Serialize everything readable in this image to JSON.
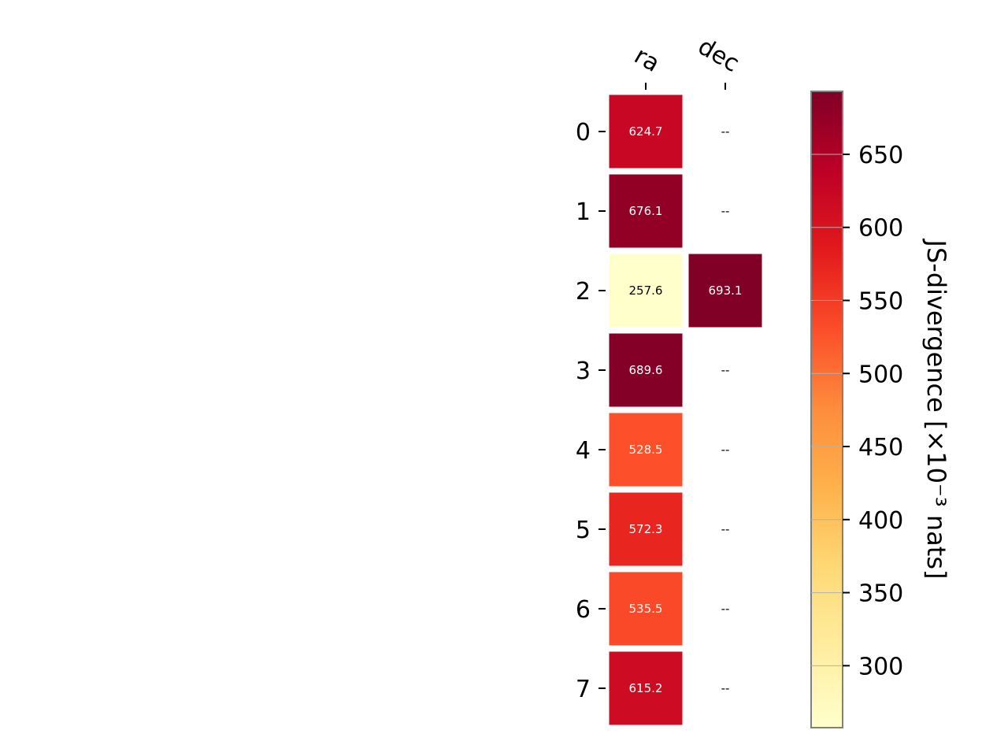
{
  "chart_data": {
    "type": "heatmap",
    "columns": [
      "ra",
      "dec"
    ],
    "rows": [
      "0",
      "1",
      "2",
      "3",
      "4",
      "5",
      "6",
      "7"
    ],
    "values": [
      [
        624.7,
        null
      ],
      [
        676.1,
        null
      ],
      [
        257.6,
        693.1
      ],
      [
        689.6,
        null
      ],
      [
        528.5,
        null
      ],
      [
        572.3,
        null
      ],
      [
        535.5,
        null
      ],
      [
        615.2,
        null
      ]
    ],
    "cell_labels": [
      [
        "624.7",
        "--"
      ],
      [
        "676.1",
        "--"
      ],
      [
        "257.6",
        "693.1"
      ],
      [
        "689.6",
        "--"
      ],
      [
        "528.5",
        "--"
      ],
      [
        "572.3",
        "--"
      ],
      [
        "535.5",
        "--"
      ],
      [
        "615.2",
        "--"
      ]
    ],
    "colorbar": {
      "label": "JS-divergence [×10⁻³ nats]",
      "range": [
        257.6,
        693.1
      ],
      "ticks": [
        300,
        350,
        400,
        450,
        500,
        550,
        600,
        650
      ],
      "tick_labels": [
        "300",
        "350",
        "400",
        "450",
        "500",
        "550",
        "600",
        "650"
      ],
      "colormap": "YlOrRd",
      "color_stops": [
        "#ffffcc",
        "#ffeda0",
        "#fed976",
        "#feb24c",
        "#fd8d3c",
        "#fc4e2a",
        "#e31a1c",
        "#bd0026",
        "#800026"
      ]
    },
    "grid": false
  }
}
